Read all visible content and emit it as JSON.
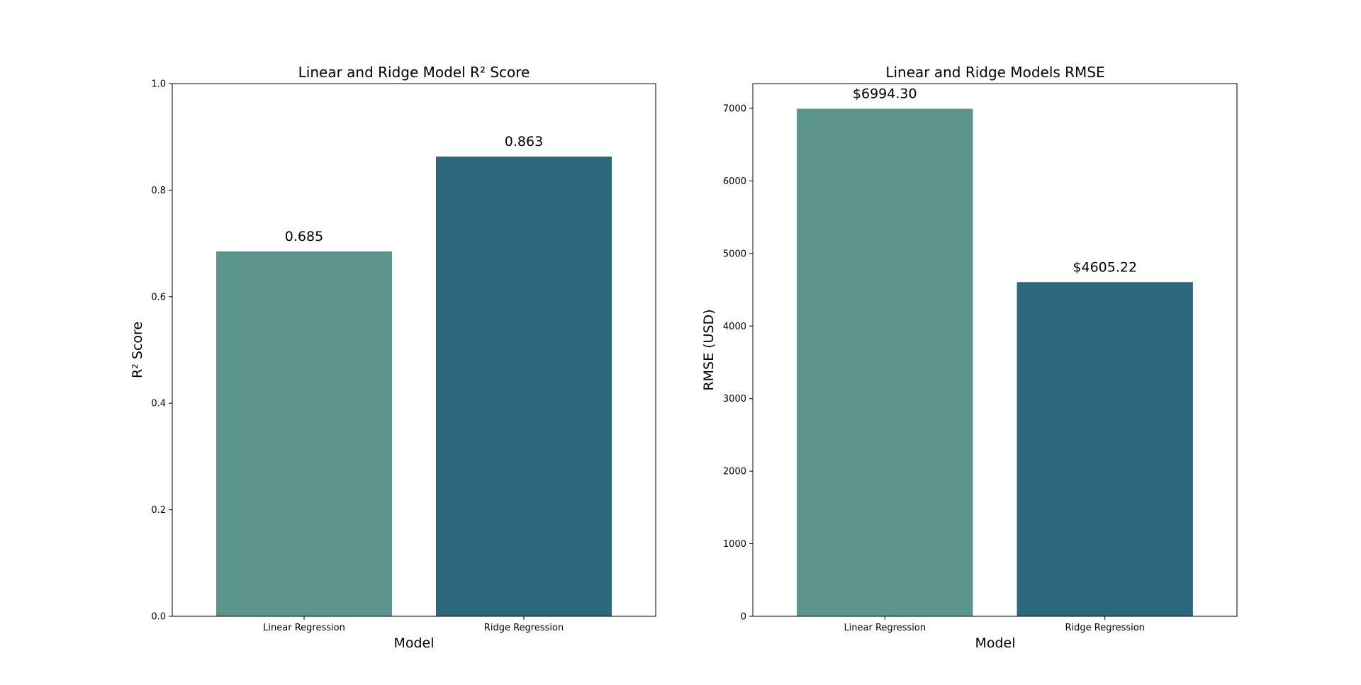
{
  "chart_data": [
    {
      "type": "bar",
      "title": "Linear and Ridge Model R² Score",
      "xlabel": "Model",
      "ylabel": "R² Score",
      "categories": [
        "Linear Regression",
        "Ridge Regression"
      ],
      "values": [
        0.685,
        0.863
      ],
      "value_labels": [
        "0.685",
        "0.863"
      ],
      "ylim": [
        0,
        1.0
      ],
      "yticks": [
        0.0,
        0.2,
        0.4,
        0.6,
        0.8,
        1.0
      ],
      "ytick_labels": [
        "0.0",
        "0.2",
        "0.4",
        "0.6",
        "0.8",
        "1.0"
      ],
      "colors": [
        "#5b958b",
        "#2d677b"
      ],
      "grid": false,
      "legend": "none"
    },
    {
      "type": "bar",
      "title": "Linear and Ridge Models RMSE",
      "xlabel": "Model",
      "ylabel": "RMSE (USD)",
      "categories": [
        "Linear Regression",
        "Ridge Regression"
      ],
      "values": [
        6994.3,
        4605.22
      ],
      "value_labels": [
        "$6994.30",
        "$4605.22"
      ],
      "ylim": [
        0,
        7341
      ],
      "yticks": [
        0,
        1000,
        2000,
        3000,
        4000,
        5000,
        6000,
        7000
      ],
      "ytick_labels": [
        "0",
        "1000",
        "2000",
        "3000",
        "4000",
        "5000",
        "6000",
        "7000"
      ],
      "colors": [
        "#5b958b",
        "#2d677b"
      ],
      "grid": false,
      "legend": "none"
    }
  ]
}
